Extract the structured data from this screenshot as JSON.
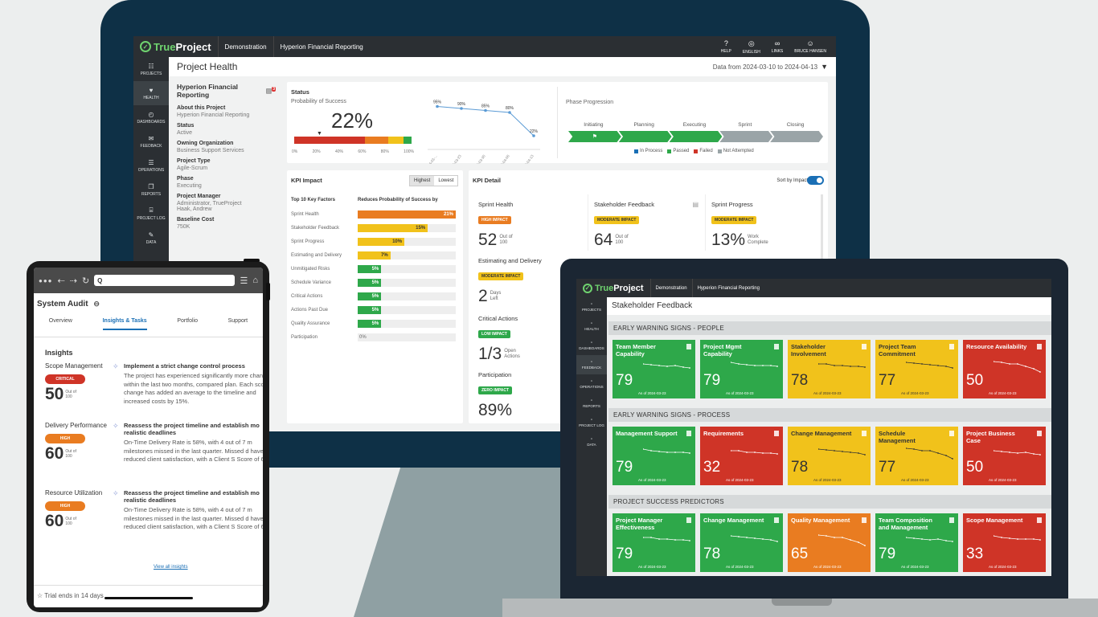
{
  "monitor": {
    "topbar": {
      "brand_a": "True",
      "brand_b": "Project",
      "crumb1": "Demonstration",
      "crumb2": "Hyperion Financial Reporting",
      "icons": [
        {
          "label": "HELP",
          "icon": "?"
        },
        {
          "label": "ENGLISH",
          "icon": "◎"
        },
        {
          "label": "LINKS",
          "icon": "∞"
        },
        {
          "label": "BRUCE HANSEN",
          "icon": "☺"
        }
      ]
    },
    "nav": [
      {
        "label": "PROJECTS",
        "icon": "☷"
      },
      {
        "label": "HEALTH",
        "icon": "♥"
      },
      {
        "label": "DASHBOARDS",
        "icon": "◴"
      },
      {
        "label": "FEEDBACK",
        "icon": "✉"
      },
      {
        "label": "OPERATIONS",
        "icon": "☰"
      },
      {
        "label": "REPORTS",
        "icon": "❐"
      },
      {
        "label": "PROJECT LOG",
        "icon": "⌸"
      },
      {
        "label": "DATA",
        "icon": "✎"
      }
    ],
    "page_title": "Project Health",
    "date_range": "Data from 2024-03-10 to 2024-04-13",
    "left": {
      "project": "Hyperion Financial Reporting",
      "items": [
        {
          "k": "About this Project",
          "v": "Hyperion Financial Reporting"
        },
        {
          "k": "Status",
          "v": "Active"
        },
        {
          "k": "Owning Organization",
          "v": "Business Support Services"
        },
        {
          "k": "Project Type",
          "v": "Agile-Scrum"
        },
        {
          "k": "Phase",
          "v": "Executing"
        },
        {
          "k": "Project Manager",
          "v": "Administrator, TrueProject\nHaak, Andrew"
        },
        {
          "k": "Baseline Cost",
          "v": "750K"
        }
      ]
    },
    "status": {
      "title": "Status",
      "pos_label": "Probability of Success",
      "pos_value": "22%",
      "scale": [
        "0%",
        "20%",
        "40%",
        "60%",
        "80%",
        "100%"
      ],
      "trend_values": [
        "95%",
        "90%",
        "85%",
        "80%",
        "22%"
      ],
      "trend_dates": [
        "2024-03-...",
        "2024-03-23",
        "2024-03-30",
        "2024-04-06",
        "2024-04-13"
      ],
      "phase_title": "Phase Progression",
      "phases": [
        "Initiating",
        "Planning",
        "Executing",
        "Sprint",
        "Closing"
      ],
      "legend": [
        "In Process",
        "Passed",
        "Failed",
        "Not Attempted"
      ]
    },
    "kpi_impact": {
      "title": "KPI Impact",
      "btn_high": "Highest",
      "btn_low": "Lowest",
      "col1": "Top 10 Key Factors",
      "col2": "Reduces Probability of Success by",
      "rows": [
        {
          "name": "Sprint Health",
          "pct": 21,
          "label": "21%",
          "color": "#e97c21"
        },
        {
          "name": "Stakeholder Feedback",
          "pct": 15,
          "label": "15%",
          "color": "#f1c21b"
        },
        {
          "name": "Sprint Progress",
          "pct": 10,
          "label": "10%",
          "color": "#f1c21b"
        },
        {
          "name": "Estimating and Delivery",
          "pct": 7,
          "label": "7%",
          "color": "#f1c21b"
        },
        {
          "name": "Unmitigated Risks",
          "pct": 5,
          "label": "5%",
          "color": "#2ea84a"
        },
        {
          "name": "Schedule Variance",
          "pct": 5,
          "label": "5%",
          "color": "#2ea84a"
        },
        {
          "name": "Critical Actions",
          "pct": 5,
          "label": "5%",
          "color": "#2ea84a"
        },
        {
          "name": "Actions Past Due",
          "pct": 5,
          "label": "5%",
          "color": "#2ea84a"
        },
        {
          "name": "Quality Assurance",
          "pct": 5,
          "label": "5%",
          "color": "#2ea84a"
        },
        {
          "name": "Participation",
          "pct": 0,
          "label": "0%",
          "color": "#2ea84a"
        }
      ]
    },
    "kpi_detail": {
      "title": "KPI Detail",
      "sort_label": "Sort by Impact",
      "cells": [
        {
          "name": "Sprint Health",
          "badge": "HIGH IMPACT",
          "badge_color": "#e97c21",
          "value": "52",
          "sub1": "Out of",
          "sub2": "100"
        },
        {
          "name": "Stakeholder Feedback",
          "badge": "MODERATE IMPACT",
          "badge_color": "#f1c21b",
          "value": "64",
          "sub1": "Out of",
          "sub2": "100"
        },
        {
          "name": "Sprint Progress",
          "badge": "MODERATE IMPACT",
          "badge_color": "#f1c21b",
          "value": "13%",
          "sub1": "Work",
          "sub2": "Complete"
        },
        {
          "name": "Estimating and Delivery",
          "badge": "MODERATE IMPACT",
          "badge_color": "#f1c21b",
          "value": "2",
          "sub1": "Days",
          "sub2": "Left"
        },
        {
          "name": "Critical Actions",
          "badge": "LOW IMPACT",
          "badge_color": "#2ea84a",
          "value": "1/3",
          "sub1": "Open",
          "sub2": "Actions"
        },
        {
          "name": "Participation",
          "badge": "ZERO IMPACT",
          "badge_color": "#2ea84a",
          "value": "89%",
          "sub1": "",
          "sub2": ""
        }
      ]
    }
  },
  "tablet": {
    "search": "Q",
    "title": "System Audit",
    "tabs": [
      "Overview",
      "Insights & Tasks",
      "Portfolio",
      "Support"
    ],
    "insights_heading": "Insights",
    "insights": [
      {
        "area": "Scope Management",
        "level": "CRITICAL",
        "color": "#cf3427",
        "score": "50",
        "s1": "Out of",
        "s2": "100",
        "head": "Implement a strict change control process",
        "desc": "The project has experienced significantly more changes within the last two months, compared plan. Each scope change has added an average to the timeline and increased costs by 15%."
      },
      {
        "area": "Delivery Performance",
        "level": "HIGH",
        "color": "#e97c21",
        "score": "60",
        "s1": "Out of",
        "s2": "100",
        "head": "Reassess the project timeline and establish mo realistic deadlines",
        "desc": "On-Time Delivery Rate is 58%, with 4 out of 7 m milestones missed in the last quarter. Missed d have reduced client satisfaction, with a Client S Score of 6/10."
      },
      {
        "area": "Resource Utilization",
        "level": "HIGH",
        "color": "#e97c21",
        "score": "60",
        "s1": "Out of",
        "s2": "100",
        "head": "Reassess the project timeline and establish mo realistic deadlines",
        "desc": "On-Time Delivery Rate is 58%, with 4 out of 7 m milestones missed in the last quarter. Missed d have reduced client satisfaction, with a Client S Score of 6/10."
      }
    ],
    "view_all": "View all insights",
    "trial": "Trial ends in 14 days"
  },
  "laptop": {
    "topbar": {
      "brand_a": "True",
      "brand_b": "Project",
      "crumb1": "Demonstration",
      "crumb2": "Hyperion Financial Reporting"
    },
    "nav": [
      "PROJECTS",
      "HEALTH",
      "DASHBOARDS",
      "FEEDBACK",
      "OPERATIONS",
      "REPORTS",
      "PROJECT LOG",
      "DATA"
    ],
    "title": "Stakeholder Feedback",
    "sections": [
      {
        "name": "EARLY WARNING SIGNS - PEOPLE",
        "tiles": [
          {
            "name": "Team Member Capability",
            "value": "79",
            "date": "As of 2024-03-23",
            "cls": "g"
          },
          {
            "name": "Project Mgmt Capability",
            "value": "79",
            "date": "As of 2024-03-23",
            "cls": "g"
          },
          {
            "name": "Stakeholder Involvement",
            "value": "78",
            "date": "As of 2024-03-23",
            "cls": "y"
          },
          {
            "name": "Project Team Commitment",
            "value": "77",
            "date": "As of 2024-03-23",
            "cls": "y"
          },
          {
            "name": "Resource Availability",
            "value": "50",
            "date": "As of 2024-03-23",
            "cls": "r"
          }
        ]
      },
      {
        "name": "EARLY WARNING SIGNS - PROCESS",
        "tiles": [
          {
            "name": "Management Support",
            "value": "79",
            "date": "As of 2024-03-23",
            "cls": "g"
          },
          {
            "name": "Requirements",
            "value": "32",
            "date": "As of 2024-03-23",
            "cls": "r"
          },
          {
            "name": "Change Management",
            "value": "78",
            "date": "As of 2024-03-23",
            "cls": "y"
          },
          {
            "name": "Schedule Management",
            "value": "77",
            "date": "As of 2024-03-23",
            "cls": "y"
          },
          {
            "name": "Project Business Case",
            "value": "50",
            "date": "As of 2024-03-23",
            "cls": "r"
          }
        ]
      },
      {
        "name": "PROJECT SUCCESS PREDICTORS",
        "tiles": [
          {
            "name": "Project Manager Effectiveness",
            "value": "79",
            "date": "As of 2024-03-23",
            "cls": "g"
          },
          {
            "name": "Change Management",
            "value": "78",
            "date": "As of 2024-03-23",
            "cls": "g"
          },
          {
            "name": "Quality Management",
            "value": "65",
            "date": "As of 2024-03-23",
            "cls": "o"
          },
          {
            "name": "Team Composition and Management",
            "value": "79",
            "date": "As of 2024-03-23",
            "cls": "g"
          },
          {
            "name": "Scope Management",
            "value": "33",
            "date": "As of 2024-03-23",
            "cls": "r"
          }
        ]
      }
    ]
  }
}
